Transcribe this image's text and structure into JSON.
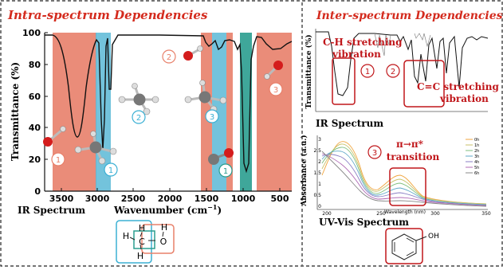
{
  "left_panel": {
    "title": "Intra-spectrum Dependencies",
    "caption": "IR Spectrum",
    "y_axis_label": "Transmittance (%)",
    "x_axis_label": "Wavenumber (cm",
    "x_axis_label_sup": "−1",
    "x_axis_label_close": ")",
    "y_ticks": [
      "100",
      "80",
      "60",
      "40",
      "20",
      "0"
    ],
    "x_ticks": [
      "3500",
      "3000",
      "2500",
      "2000",
      "1500",
      "1000",
      "500"
    ],
    "markers": [
      "1",
      "1",
      "1",
      "2",
      "2",
      "3",
      "3"
    ],
    "colors": {
      "red_band": "#e8806a",
      "blue_band": "#5bb8d6",
      "teal_band": "#2a9d8f"
    }
  },
  "right_panel": {
    "title": "Inter-spectrum Dependencies",
    "ir": {
      "caption": "IR Spectrum",
      "y_label": "Transmittance (%)",
      "ch_label_1": "C-H stretching",
      "ch_label_2": "vibration",
      "cc_label_1": "C=C stretching",
      "cc_label_2": "vibration",
      "marker_1": "1",
      "marker_2": "2"
    },
    "uv": {
      "caption": "UV-Vis Spectrum",
      "y_label": "Absorbance (a.u.)",
      "x_label": "Wavelength (nm)",
      "transition_1": "π→π*",
      "transition_2": "transition",
      "marker_3": "3",
      "x_ticks": [
        "200",
        "250",
        "300",
        "350"
      ],
      "y_ticks": [
        "3",
        "2.5",
        "2",
        "1.5",
        "1",
        "0.5",
        "0"
      ],
      "legend": [
        "0h",
        "1h",
        "2h",
        "3h",
        "4h",
        "5h",
        "6h"
      ]
    },
    "phenol_oh": "OH"
  },
  "structure": {
    "atom_h1": "H",
    "atom_h2": "H",
    "atom_h3": "H",
    "atom_h4": "H",
    "atom_c": "C",
    "atom_o": "O"
  }
}
